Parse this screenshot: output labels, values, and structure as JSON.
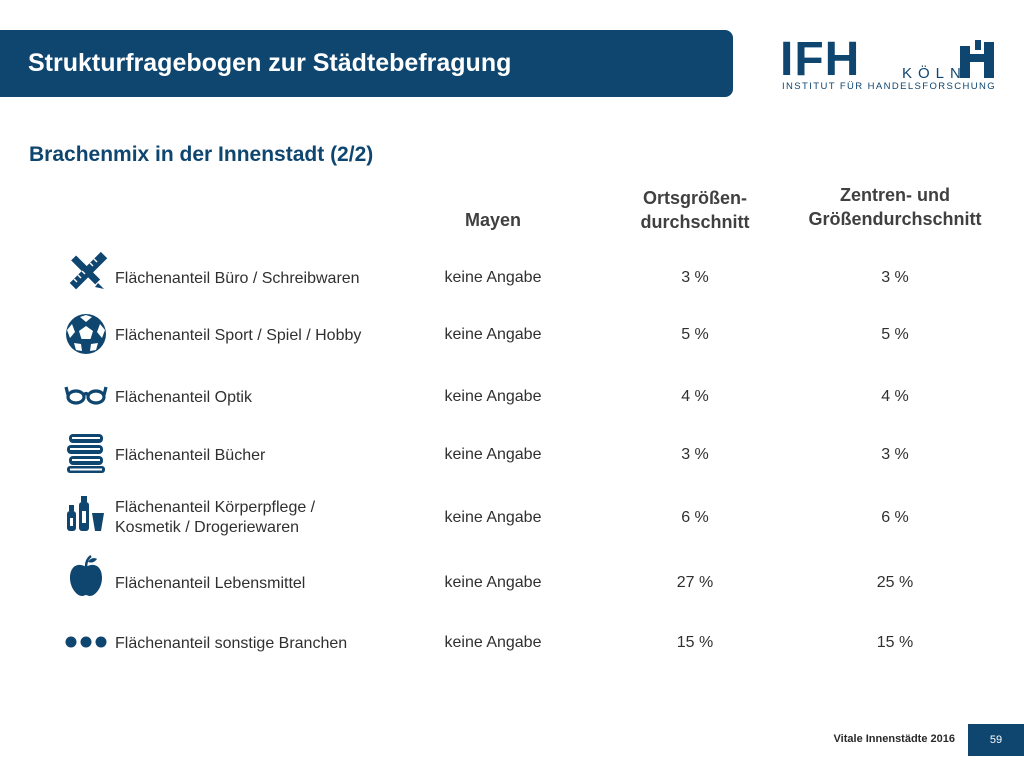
{
  "header": {
    "title": "Strukturfragebogen zur Städtebefragung",
    "logo_main": "IFH",
    "logo_city": "KÖLN",
    "logo_sub": "INSTITUT FÜR HANDELSFORSCHUNG"
  },
  "subtitle": "Brachenmix in der Innenstadt (2/2)",
  "columns": {
    "mayen": "Mayen",
    "orts": "Ortsgrößen-\ndurchschnitt",
    "zentren": "Zentren- und\nGrößendurchschnitt"
  },
  "rows": [
    {
      "icon": "ruler-pencil-icon",
      "label": "Flächenanteil Büro / Schreibwaren",
      "mayen": "keine Angabe",
      "orts": "3 %",
      "zentren": "3 %"
    },
    {
      "icon": "soccer-ball-icon",
      "label": "Flächenanteil Sport / Spiel / Hobby",
      "mayen": "keine Angabe",
      "orts": "5 %",
      "zentren": "5 %"
    },
    {
      "icon": "glasses-icon",
      "label": "Flächenanteil Optik",
      "mayen": "keine Angabe",
      "orts": "4 %",
      "zentren": "4 %"
    },
    {
      "icon": "books-icon",
      "label": "Flächenanteil Bücher",
      "mayen": "keine Angabe",
      "orts": "3 %",
      "zentren": "3 %"
    },
    {
      "icon": "cosmetics-icon",
      "label": "Flächenanteil Körperpflege /\nKosmetik / Drogeriewaren",
      "mayen": "keine Angabe",
      "orts": "6 %",
      "zentren": "6 %"
    },
    {
      "icon": "apple-icon",
      "label": "Flächenanteil Lebensmittel",
      "mayen": "keine Angabe",
      "orts": "27 %",
      "zentren": "25 %"
    },
    {
      "icon": "dots-icon",
      "label": "Flächenanteil sonstige Branchen",
      "mayen": "keine Angabe",
      "orts": "15 %",
      "zentren": "15 %"
    }
  ],
  "footer": {
    "text": "Vitale Innenstädte 2016",
    "page": "59"
  },
  "colors": {
    "brand": "#0f4670"
  }
}
